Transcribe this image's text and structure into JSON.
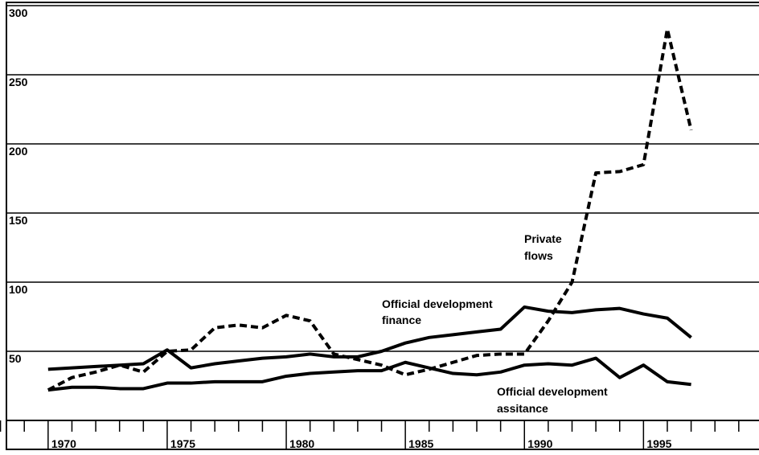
{
  "chart_data": {
    "type": "line",
    "x": [
      1970,
      1971,
      1972,
      1973,
      1974,
      1975,
      1976,
      1977,
      1978,
      1979,
      1980,
      1981,
      1982,
      1983,
      1984,
      1985,
      1986,
      1987,
      1988,
      1989,
      1990,
      1991,
      1992,
      1993,
      1994,
      1995,
      1996,
      1997
    ],
    "series": [
      {
        "name": "Private flows",
        "color": "#000000",
        "dashed": true,
        "values": [
          22,
          31,
          35,
          40,
          35,
          50,
          51,
          67,
          69,
          67,
          76,
          72,
          48,
          44,
          40,
          33,
          37,
          42,
          47,
          48,
          48,
          72,
          100,
          179,
          180,
          185,
          283,
          210
        ]
      },
      {
        "name": "Official development finance",
        "color": "#000000",
        "dashed": false,
        "values": [
          37,
          38,
          39,
          40,
          41,
          51,
          38,
          41,
          43,
          45,
          46,
          48,
          46,
          46,
          50,
          56,
          60,
          62,
          64,
          66,
          82,
          79,
          78,
          80,
          81,
          77,
          74,
          60
        ]
      },
      {
        "name": "Official development assitance",
        "color": "#000000",
        "dashed": false,
        "values": [
          22,
          24,
          24,
          23,
          23,
          27,
          27,
          28,
          28,
          28,
          32,
          34,
          35,
          36,
          36,
          42,
          38,
          34,
          33,
          35,
          40,
          41,
          40,
          45,
          31,
          40,
          28,
          26
        ]
      }
    ],
    "annotations": [
      "Private",
      "flows",
      "Official development",
      "finance",
      "Official development",
      "assitance"
    ],
    "xlim": [
      1968.25,
      1999.85
    ],
    "xticks": [
      1970,
      1975,
      1980,
      1985,
      1990,
      1995
    ],
    "ylim": [
      0,
      300
    ],
    "yticks": [
      50,
      100,
      150,
      200,
      250,
      300
    ],
    "grid": true
  }
}
